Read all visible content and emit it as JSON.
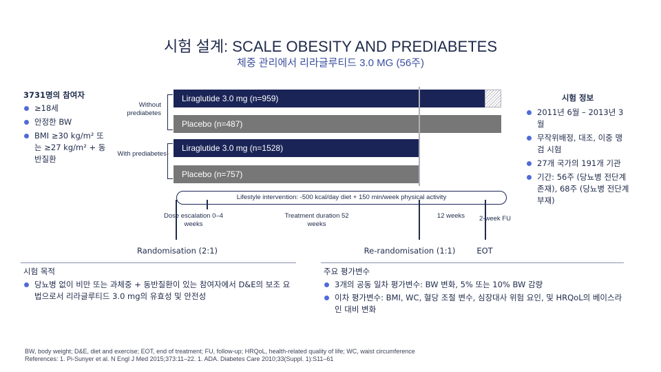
{
  "header": {
    "title": "시험 설계: SCALE OBESITY AND PREDIABETES",
    "subtitle": "체중 관리에서 리라글루티드 3.0 MG (56주)"
  },
  "participants": {
    "heading": "3731명의 참여자",
    "items": [
      "≥18세",
      "안정한 BW",
      "BMI ≥30 kg/m² 또는 ≥27 kg/m² + 동반질환"
    ]
  },
  "groups": {
    "without_label": "Without prediabetes",
    "with_label": "With prediabetes¹"
  },
  "arms": [
    {
      "label": "Liraglutide 3.0 mg (n=959)"
    },
    {
      "label": "Placebo (n=487)"
    },
    {
      "label": "Liraglutide 3.0 mg (n=1528)"
    },
    {
      "label": "Placebo (n=757)"
    }
  ],
  "timeline": {
    "lifestyle": "Lifestyle intervention: -500 kcal/day diet + 150 min/week physical activity",
    "dose": "Dose escalation 0–4 weeks",
    "treatment": "Treatment duration 52 weeks",
    "twelve_weeks": "12 weeks",
    "followup": "2-week FU",
    "randomisation": "Randomisation (2:1)",
    "rerandomisation": "Re-randomisation (1:1)",
    "eot": "EOT"
  },
  "trial_info": {
    "heading": "시험 정보",
    "items": [
      "2011년 6월 – 2013년 3월",
      "무작위배정, 대조, 이중 맹검 시험",
      "27개 국가의 191개 기관",
      "기간: 56주 (당뇨병 전단계 존재), 68주 (당뇨병 전단계 부재)"
    ]
  },
  "objective": {
    "heading": "시험 목적",
    "items": [
      "당뇨병 없이 비만 또는 과체중 + 동반질환이 있는 참여자에서 D&E의 보조 요법으로서 리라글루티드 3.0 mg의 유효성 및 안전성"
    ]
  },
  "endpoints": {
    "heading": "주요 평가변수",
    "items": [
      "3개의 공동 일차 평가변수: BW 변화, 5% 또는 10% BW 감량",
      "이차 평가변수: BMI, WC, 혈당 조절 변수, 심장대사 위험 요인, 및 HRQoL의 베이스라인 대비 변화"
    ]
  },
  "footer": {
    "abbreviations": "BW, body weight; D&E, diet and exercise; EOT, end of treatment; FU, follow-up; HRQoL, health-related quality of life; WC, waist circumference",
    "references": "References: 1. Pi-Sunyer et al. N Engl J Med 2015;373:11–22. 1. ADA. Diabetes Care 2010;33(Suppl. 1):S11–61"
  },
  "colors": {
    "navy": "#1a2457",
    "grey": "#777777",
    "accent": "#4f6bd8"
  }
}
